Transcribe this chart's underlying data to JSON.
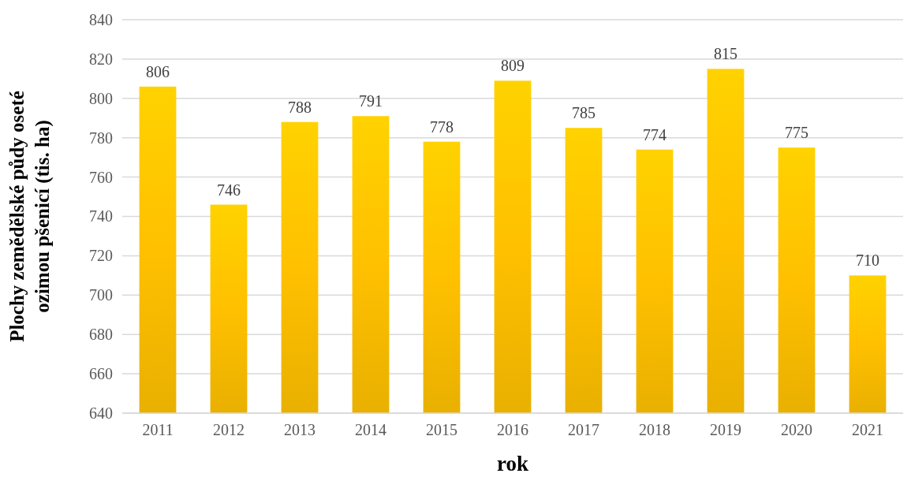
{
  "chart_data": {
    "type": "bar",
    "xlabel": "rok",
    "ylabel": "Plochy zemědělské půdy oseté ozimou pšenicí (tis. ha)",
    "categories": [
      "2011",
      "2012",
      "2013",
      "2014",
      "2015",
      "2016",
      "2017",
      "2018",
      "2019",
      "2020",
      "2021"
    ],
    "values": [
      806,
      746,
      788,
      791,
      778,
      809,
      785,
      774,
      815,
      775,
      710
    ],
    "color": "#ffc000",
    "ylim": [
      640,
      840
    ],
    "yticks": [
      640,
      660,
      680,
      700,
      720,
      740,
      760,
      780,
      800,
      820,
      840
    ],
    "grid": "y",
    "data_labels": true
  }
}
